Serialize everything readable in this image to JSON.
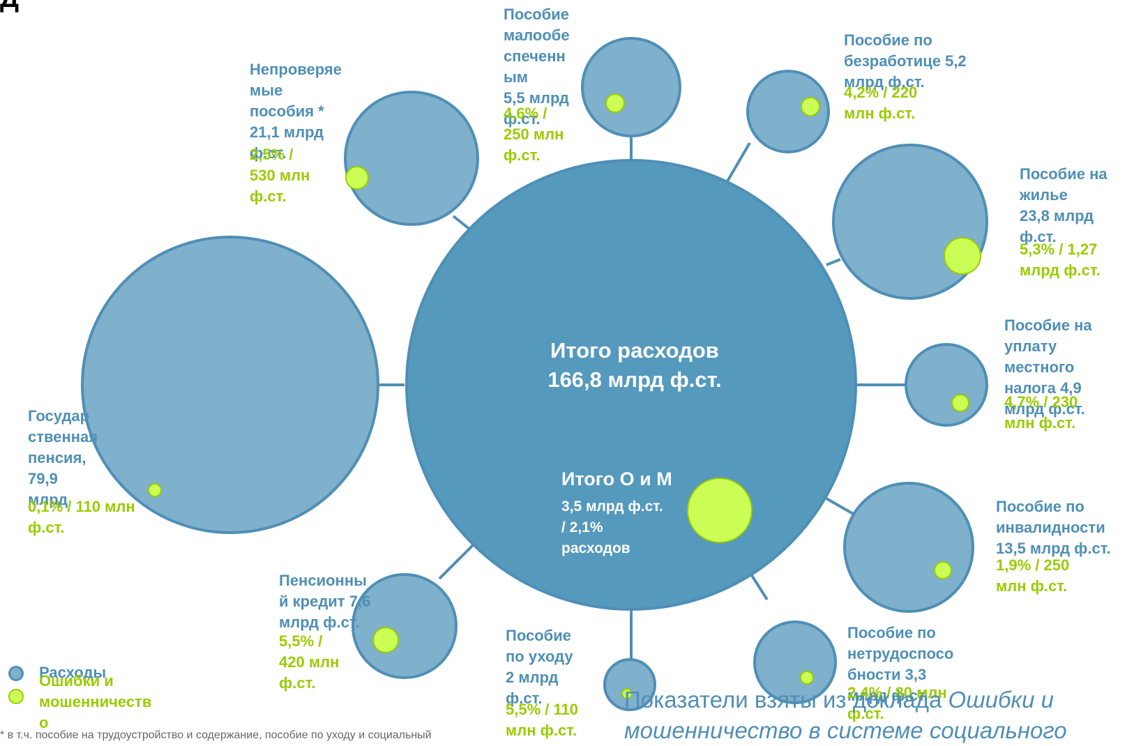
{
  "colors": {
    "expense": "#7fb0cc",
    "expense_stroke": "#4f8fb6",
    "center": "#5599bd",
    "fraud": "#ccff55",
    "fraud_stroke": "#99cc00",
    "label_blue": "#4f8fb6",
    "label_green": "#99cc00"
  },
  "center": {
    "title": "Итого расходов\n166,8 млрд ф.ст.",
    "fraud_title": "Итого О и М",
    "fraud_sub": "3,5 млрд ф.ст.\n/ 2,1%\nрасходов"
  },
  "nodes": [
    {
      "id": "state-pension",
      "name": "Государ\nственная\nпенсия,\n79,9\nмлрд",
      "fraud": "0,1% / 110 млн\nф.ст."
    },
    {
      "id": "unverified",
      "name": "Непроверяе\nмые\nпособия *\n21,1 млрд\nф.ст.",
      "fraud": "2,5% /\n530 млн\nф.ст."
    },
    {
      "id": "low-income",
      "name": "Пособие\nмалообе\nспеченн\nым\n5,5 млрд\nф.ст.",
      "fraud": "4,6% /\n250 млн\nф.ст."
    },
    {
      "id": "unemployment",
      "name": "Пособие по\nбезработице 5,2\nмлрд ф.ст.",
      "fraud": "4,2% / 220\nмлн ф.ст."
    },
    {
      "id": "housing",
      "name": "Пособие на\nжилье\n23,8 млрд\nф.ст.",
      "fraud": "5,3% / 1,27\nмлрд ф.ст."
    },
    {
      "id": "council-tax",
      "name": "Пособие на\nуплату\nместного\nналога 4,9\nмлрд ф.ст.",
      "fraud": "4,7% / 230\nмлн ф.ст."
    },
    {
      "id": "disability",
      "name": "Пособие по\nинвалидности\n13,5 млрд ф.ст.",
      "fraud": "1,9% / 250\nмлн ф.ст."
    },
    {
      "id": "incapacity",
      "name": "Пособие по\nнетрудоспосо\nбности 3,3\nмлрд ф.ст.",
      "fraud": "2,4% / 80 млн\nф.ст."
    },
    {
      "id": "carers",
      "name": "Пособие\nпо уходу\n2 млрд\nф.ст.",
      "fraud": "5,5% / 110\nмлн ф.ст."
    },
    {
      "id": "pension-credit",
      "name": "Пенсионны\nй кредит 7,6\nмлрд ф.ст.",
      "fraud": "5,5% /\n420 млн\nф.ст."
    }
  ],
  "legend": {
    "expenses": "Расходы",
    "fraud": "Ошибки и\nмошенничеств\nо"
  },
  "footnote": "* в т.ч. пособие на трудоустройство и содержание, пособие по уходу и социальный",
  "source": {
    "prefix": "Показатели взяты из доклада ",
    "italic1": "Ошибки и",
    "italic2": "мошенничество в системе социального"
  },
  "title_fragment": "Д"
}
